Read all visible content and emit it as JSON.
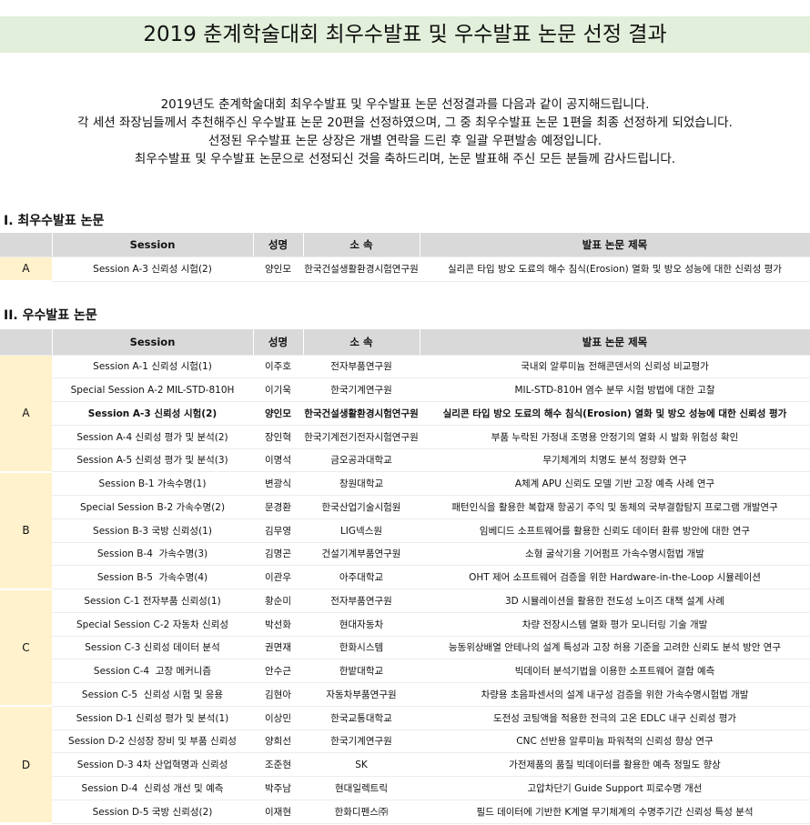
{
  "header": {
    "title": "2019 춘계학술대회 최우수발표 및 우수발표 논문 선정 결과"
  },
  "intro": [
    "2019년도 춘계학술대회 최우수발표 및 우수발표 논문 선정결과를 다음과 같이 공지해드립니다.",
    "각 세션 좌장님들께서 추천해주신 우수발표 논문 20편을 선정하였으며, 그 중 최우수발표 논문 1편을 최종 선정하게 되었습니다.",
    "선정된 우수발표 논문 상장은 개별 연락을 드린 후 일괄 우편발송 예정입니다.",
    "최우수발표 및 우수발표 논문으로 선정되신 것을 축하드리며, 논문 발표해 주신 모든 분들께 감사드립니다."
  ],
  "best": {
    "title": "I. 최우수발표 논문",
    "columns": [
      "Session",
      "성명",
      "소 속",
      "발표 논문 제목"
    ],
    "rows": [
      {
        "group": "A",
        "session": "Session A-3 신뢰성 시험(2)",
        "name": "양인모",
        "affiliation": "한국건설생활환경시험연구원",
        "paper": "실리콘 타입 방오 도료의 해수 침식(Erosion) 열화 및 방오 성능에 대한 신뢰성 평가"
      }
    ]
  },
  "excellent": {
    "title": "II. 우수발표 논문",
    "columns": [
      "Session",
      "성명",
      "소 속",
      "발표 논문 제목"
    ],
    "groups": [
      {
        "label": "A",
        "rows": [
          {
            "session": "Session A-1 신뢰성 시험(1)",
            "name": "이주호",
            "affiliation": "전자부품연구원",
            "paper": "국내외 알루미늄 전해콘덴서의 신뢰성 비교평가"
          },
          {
            "session": "Special Session A-2 MIL-STD-810H",
            "name": "이기욱",
            "affiliation": "한국기계연구원",
            "paper": "MIL-STD-810H 염수 분무 시험 방법에 대한 고찰"
          },
          {
            "session": "Session A-3 신뢰성 시험(2)",
            "name": "양인모",
            "affiliation": "한국건설생활환경시험연구원",
            "paper": "실리콘 타입 방오 도료의 해수 침식(Erosion) 열화 및 방오 성능에 대한 신뢰성 평가",
            "bold": true
          },
          {
            "session": "Session A-4 신뢰성 평가 및 분석(2)",
            "name": "장인혁",
            "affiliation": "한국기계전기전자시험연구원",
            "paper": "부품 누락된 가정내 조명용 안정기의 열화 시 발화 위험성 확인"
          },
          {
            "session": "Session A-5 신뢰성 평가 및 분석(3)",
            "name": "이명석",
            "affiliation": "금오공과대학교",
            "paper": "무기체계의 치명도 분석 정량화 연구"
          }
        ]
      },
      {
        "label": "B",
        "rows": [
          {
            "session": "Session B-1 가속수명(1)",
            "name": "변광식",
            "affiliation": "창원대학교",
            "paper": "A체계 APU 신뢰도 모델 기반 고장 예측 사례 연구"
          },
          {
            "session": "Special Session B-2 가속수명(2)",
            "name": "문경환",
            "affiliation": "한국산업기술시험원",
            "paper": "패턴인식을 활용한 복합재 항공기 주익 및 동체의 국부결함탐지 프로그램 개발연구"
          },
          {
            "session": "Session B-3 국방 신뢰성(1)",
            "name": "김무영",
            "affiliation": "LIG넥스원",
            "paper": "임베디드 소프트웨어를 활용한 신뢰도 데이터 환류 방안에 대한 연구"
          },
          {
            "session": "Session B-4  가속수명(3)",
            "name": "김명곤",
            "affiliation": "건설기계부품연구원",
            "paper": "소형 굴삭기용 기어펌프 가속수명시험법 개발"
          },
          {
            "session": "Session B-5  가속수명(4)",
            "name": "이관우",
            "affiliation": "아주대학교",
            "paper": "OHT 제어 소프트웨어 검증을 위한 Hardware-in-the-Loop 시뮬레이션"
          }
        ]
      },
      {
        "label": "C",
        "rows": [
          {
            "session": "Session C-1 전자부품 신뢰성(1)",
            "name": "황순미",
            "affiliation": "전자부품연구원",
            "paper": "3D 시뮬레이션을 활용한 전도성 노이즈 대책 설계 사례"
          },
          {
            "session": "Special Session C-2 자동차 신뢰성",
            "name": "박선화",
            "affiliation": "현대자동차",
            "paper": "차량 전장시스템 열화 평가 모니터링 기술 개발"
          },
          {
            "session": "Session C-3 신뢰성 데이터 분석",
            "name": "권면재",
            "affiliation": "한화시스템",
            "paper": "능동위상배열 안테나의 설계 특성과 고장 허용 기준을 고려한 신뢰도 분석 방안 연구"
          },
          {
            "session": "Session C-4  고장 메커니즘",
            "name": "안수근",
            "affiliation": "한밭대학교",
            "paper": "빅데이터 분석기법을 이용한 소프트웨어 결함 예측"
          },
          {
            "session": "Session C-5  신뢰성 시험 및 응용",
            "name": "김현아",
            "affiliation": "자동차부품연구원",
            "paper": "차량용 초음파센서의 설계 내구성 검증을 위한 가속수명시험법 개발"
          }
        ]
      },
      {
        "label": "D",
        "rows": [
          {
            "session": "Session D-1 신뢰성 평가 및 분석(1)",
            "name": "이상민",
            "affiliation": "한국교통대학교",
            "paper": "도전성 코팅액을 적용한 전극의 고온 EDLC 내구 신뢰성 평가"
          },
          {
            "session": "Session D-2 신성장 장비 및 부품 신뢰성",
            "name": "양희선",
            "affiliation": "한국기계연구원",
            "paper": "CNC 선반용 알루미늄 파워척의 신뢰성 향상 연구"
          },
          {
            "session": "Session D-3 4차 산업혁명과 신뢰성",
            "name": "조준현",
            "affiliation": "SK",
            "paper": "가전제품의 품질 빅데이터를 활용한 예측 정밀도 향상"
          },
          {
            "session": "Session D-4  신뢰성 개선 및 예측",
            "name": "박주남",
            "affiliation": "현대일렉트릭",
            "paper": "고압차단기 Guide Support 피로수명 개선"
          },
          {
            "session": "Session D-5 국방 신뢰성(2)",
            "name": "이재현",
            "affiliation": "한화디펜스㈜",
            "paper": "필드 데이터에 기반한 K계열 무기체계의 수명주기간 신뢰성 특성 분석"
          }
        ]
      }
    ]
  }
}
